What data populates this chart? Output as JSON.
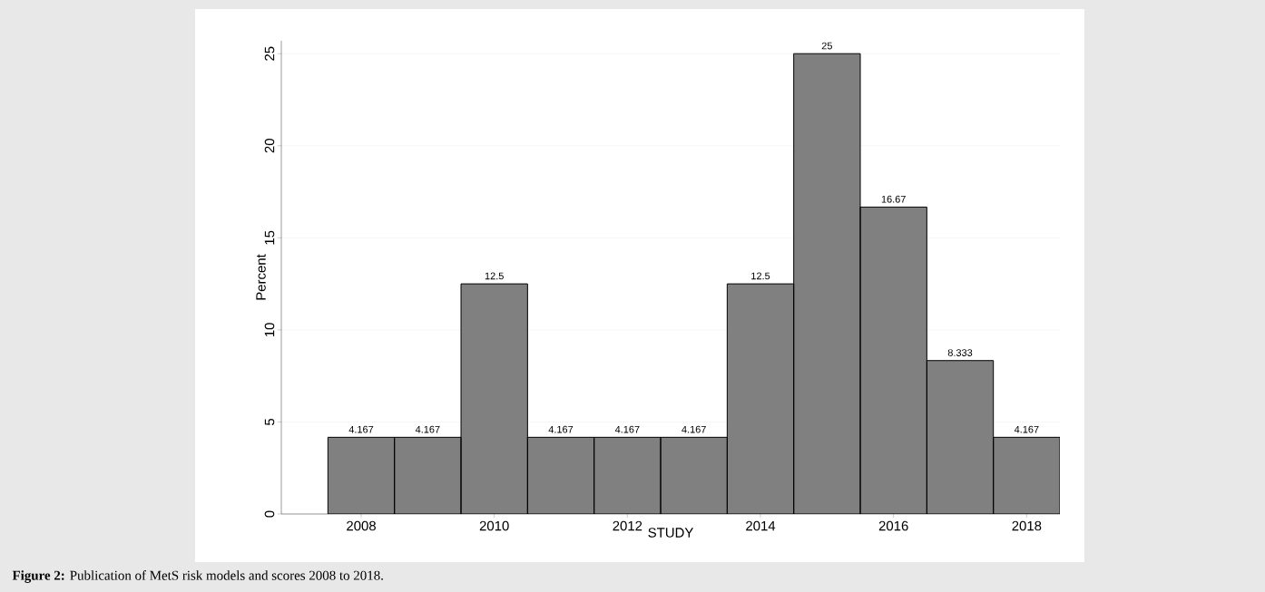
{
  "chart_data": {
    "type": "histogram",
    "xlabel": "STUDY",
    "ylabel": "Percent",
    "bins": [
      2007.5,
      2008.5,
      2009.5,
      2010.5,
      2011.5,
      2012.5,
      2013.5,
      2014.5,
      2015.5,
      2016.5,
      2017.5,
      2018.5
    ],
    "values": [
      4.167,
      4.167,
      12.5,
      4.167,
      4.167,
      4.167,
      12.5,
      25,
      16.67,
      8.333,
      4.167
    ],
    "color": "#808080",
    "data_labels": true,
    "grid": "y",
    "xlim": [
      2006.8,
      2018.5
    ],
    "xticks": [
      2008,
      2010,
      2012,
      2014,
      2016,
      2018
    ],
    "ylim": [
      0,
      25.7
    ],
    "yticks": [
      0,
      5,
      10,
      15,
      20,
      25
    ],
    "annotations": [
      "**Figure 2:** Publication of MetS risk models and scores 2008 to 2018."
    ]
  }
}
